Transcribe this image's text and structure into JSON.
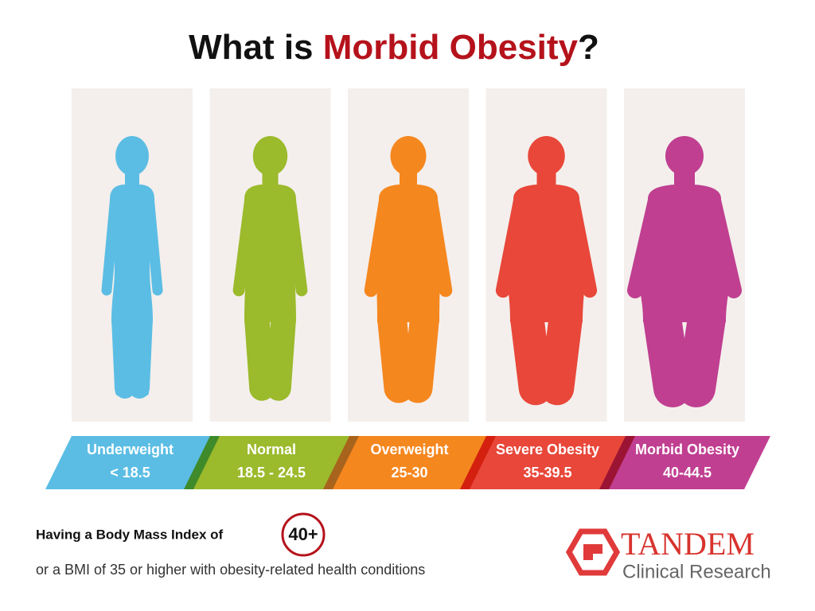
{
  "title": {
    "prefix": "What is ",
    "highlight": "Morbid Obesity",
    "suffix": "?"
  },
  "categories": [
    {
      "label": "Underweight",
      "range": "< 18.5",
      "color": "#5bbde4",
      "edge": "#2f8fc0"
    },
    {
      "label": "Normal",
      "range": "18.5 - 24.5",
      "color": "#9bba2c",
      "edge": "#3f8a2a"
    },
    {
      "label": "Overweight",
      "range": "25-30",
      "color": "#f5871f",
      "edge": "#a8641c"
    },
    {
      "label": "Severe Obesity",
      "range": "35-39.5",
      "color": "#e8473a",
      "edge": "#d4200f"
    },
    {
      "label": "Morbid Obesity",
      "range": "40-44.5",
      "color": "#c03f91",
      "edge": "#9c1433"
    }
  ],
  "footer": {
    "line1": "Having a Body Mass Index of",
    "badge": "40+",
    "line2": "or a BMI of 35 or higher with obesity-related health conditions"
  },
  "logo": {
    "name": "TANDEM",
    "tagline": "Clinical Research"
  }
}
